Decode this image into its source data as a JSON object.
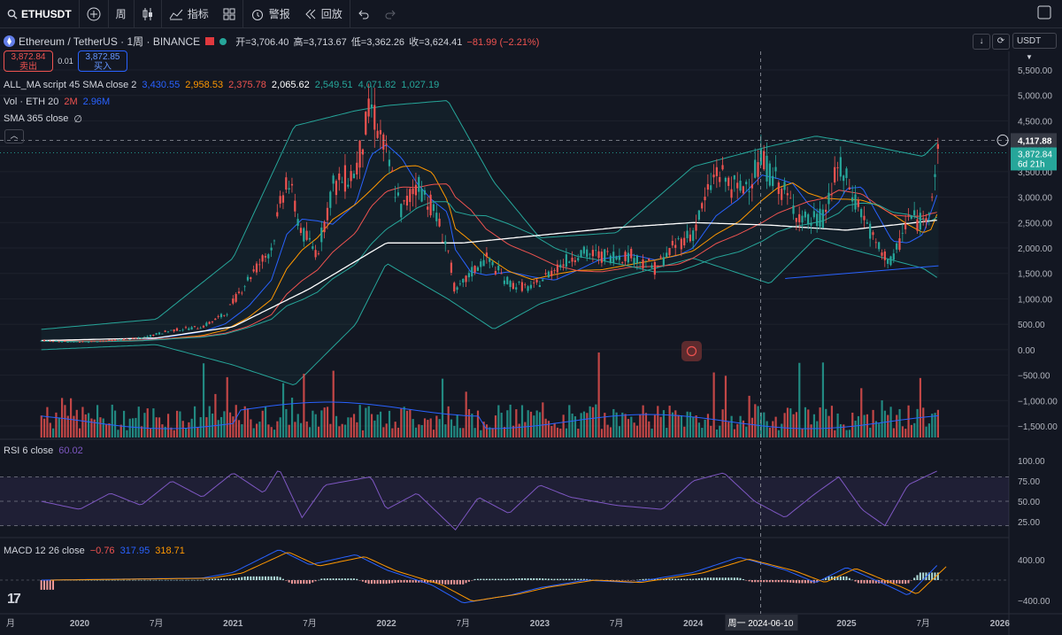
{
  "toolbar": {
    "symbol": "ETHUSDT",
    "interval": "周",
    "indicators_label": "指标",
    "alert_label": "警报",
    "replay_label": "回放"
  },
  "header": {
    "title": "Ethereum / TetherUS · 1周 · BINANCE",
    "open": "开=3,706.40",
    "high": "高=3,713.67",
    "low": "低=3,362.26",
    "close": "收=3,624.41",
    "change": "−81.99 (−2.21%)",
    "sell_price": "3,872.84",
    "sell_label": "卖出",
    "spread": "0.01",
    "buy_price": "3,872.85",
    "buy_label": "买入",
    "currency": "USDT"
  },
  "legend": {
    "ma_name": "ALL_MA script 45 SMA close 2",
    "ma_values": [
      "3,430.55",
      "2,958.53",
      "2,375.78",
      "2,065.62",
      "2,549.51",
      "4,071.82",
      "1,027.19"
    ],
    "ma_colors": [
      "#2962ff",
      "#ff9800",
      "#ef5350",
      "#ffffff",
      "#26a69a",
      "#26a69a",
      "#26a69a"
    ],
    "vol_name": "Vol · ETH 20",
    "vol_v1": "2M",
    "vol_v2": "2.96M",
    "sma_name": "SMA 365 close",
    "sma_val": "∅",
    "rsi_name": "RSI 6 close",
    "rsi_val": "60.02",
    "macd_name": "MACD 12 26 close",
    "macd_values": [
      "−0.76",
      "317.95",
      "318.71"
    ]
  },
  "colors": {
    "bg": "#131722",
    "up": "#26a69a",
    "down": "#ef5350",
    "grid": "#1e222d"
  },
  "chart_data": {
    "type": "candlestick",
    "price_axis": {
      "ticks": [
        "5,500.00",
        "5,000.00",
        "4,500.00",
        "4,000.00",
        "3,500.00",
        "3,000.00",
        "2,500.00",
        "2,000.00",
        "1,500.00",
        "1,000.00",
        "500.00",
        "0.00",
        "−500.00",
        "−1,000.00",
        "−1,500.00"
      ],
      "min": -1500,
      "max": 5500
    },
    "price_labels": {
      "crosshair": "4,117.88",
      "last": "3,872.84",
      "countdown": "6d 21h"
    },
    "x_ticks": [
      "月",
      "2020",
      "7月",
      "2021",
      "7月",
      "2022",
      "7月",
      "2023",
      "7月",
      "2024",
      "周一 2024-06-10",
      "2025",
      "7月",
      "2026"
    ],
    "rsi_ticks": [
      "100.00",
      "75.00",
      "50.00",
      "25.00"
    ],
    "macd_ticks": [
      "400.00",
      "−400.00"
    ],
    "price_path": [
      [
        2019.75,
        180
      ],
      [
        2020.0,
        150
      ],
      [
        2020.2,
        180
      ],
      [
        2020.4,
        230
      ],
      [
        2020.6,
        380
      ],
      [
        2020.8,
        450
      ],
      [
        2020.95,
        700
      ],
      [
        2021.1,
        1400
      ],
      [
        2021.25,
        2000
      ],
      [
        2021.35,
        3400
      ],
      [
        2021.45,
        2300
      ],
      [
        2021.55,
        1900
      ],
      [
        2021.65,
        3200
      ],
      [
        2021.8,
        3500
      ],
      [
        2021.9,
        4800
      ],
      [
        2022.0,
        3800
      ],
      [
        2022.1,
        2700
      ],
      [
        2022.2,
        3300
      ],
      [
        2022.3,
        2800
      ],
      [
        2022.4,
        2000
      ],
      [
        2022.45,
        1100
      ],
      [
        2022.55,
        1500
      ],
      [
        2022.65,
        1800
      ],
      [
        2022.8,
        1300
      ],
      [
        2022.95,
        1200
      ],
      [
        2023.1,
        1600
      ],
      [
        2023.25,
        1900
      ],
      [
        2023.4,
        1850
      ],
      [
        2023.6,
        1850
      ],
      [
        2023.75,
        1600
      ],
      [
        2023.9,
        2100
      ],
      [
        2024.0,
        2300
      ],
      [
        2024.15,
        3500
      ],
      [
        2024.3,
        3100
      ],
      [
        2024.45,
        3700
      ],
      [
        2024.55,
        3300
      ],
      [
        2024.65,
        2800
      ],
      [
        2024.75,
        2500
      ],
      [
        2024.85,
        2600
      ],
      [
        2024.95,
        3600
      ],
      [
        2025.0,
        3300
      ],
      [
        2025.1,
        2700
      ],
      [
        2025.2,
        2000
      ],
      [
        2025.3,
        1700
      ],
      [
        2025.4,
        2600
      ],
      [
        2025.5,
        2500
      ],
      [
        2025.55,
        3000
      ],
      [
        2025.6,
        3873
      ]
    ],
    "sma365_path": [
      [
        2019.75,
        180
      ],
      [
        2020.5,
        230
      ],
      [
        2021.0,
        450
      ],
      [
        2021.5,
        1200
      ],
      [
        2022.0,
        2100
      ],
      [
        2022.5,
        2100
      ],
      [
        2023.0,
        2250
      ],
      [
        2023.5,
        2400
      ],
      [
        2024.0,
        2500
      ],
      [
        2024.5,
        2450
      ],
      [
        2025.0,
        2350
      ],
      [
        2025.6,
        2550
      ]
    ],
    "bb_upper": [
      [
        2019.75,
        400
      ],
      [
        2020.5,
        600
      ],
      [
        2021.0,
        1800
      ],
      [
        2021.4,
        4400
      ],
      [
        2021.8,
        4700
      ],
      [
        2022.0,
        4800
      ],
      [
        2022.4,
        4900
      ],
      [
        2022.7,
        3300
      ],
      [
        2023.0,
        2200
      ],
      [
        2023.5,
        2300
      ],
      [
        2024.0,
        3600
      ],
      [
        2024.5,
        4000
      ],
      [
        2024.8,
        4200
      ],
      [
        2025.0,
        4100
      ],
      [
        2025.5,
        3800
      ],
      [
        2025.6,
        4100
      ]
    ],
    "bb_lower": [
      [
        2019.75,
        0
      ],
      [
        2020.5,
        100
      ],
      [
        2021.0,
        -300
      ],
      [
        2021.4,
        -700
      ],
      [
        2021.8,
        500
      ],
      [
        2022.0,
        1700
      ],
      [
        2022.4,
        1000
      ],
      [
        2022.7,
        400
      ],
      [
        2023.0,
        900
      ],
      [
        2023.5,
        1400
      ],
      [
        2024.0,
        1800
      ],
      [
        2024.5,
        1300
      ],
      [
        2024.8,
        2200
      ],
      [
        2025.0,
        2000
      ],
      [
        2025.5,
        1600
      ],
      [
        2025.6,
        1400
      ]
    ],
    "rsi_path": [
      [
        2019.75,
        50
      ],
      [
        2020.0,
        40
      ],
      [
        2020.2,
        60
      ],
      [
        2020.4,
        45
      ],
      [
        2020.6,
        75
      ],
      [
        2020.8,
        55
      ],
      [
        2021.0,
        85
      ],
      [
        2021.2,
        60
      ],
      [
        2021.3,
        90
      ],
      [
        2021.45,
        30
      ],
      [
        2021.6,
        70
      ],
      [
        2021.9,
        80
      ],
      [
        2022.0,
        40
      ],
      [
        2022.2,
        60
      ],
      [
        2022.45,
        15
      ],
      [
        2022.6,
        55
      ],
      [
        2022.8,
        35
      ],
      [
        2023.0,
        70
      ],
      [
        2023.2,
        55
      ],
      [
        2023.5,
        45
      ],
      [
        2023.8,
        40
      ],
      [
        2024.0,
        75
      ],
      [
        2024.2,
        85
      ],
      [
        2024.4,
        50
      ],
      [
        2024.6,
        30
      ],
      [
        2024.8,
        60
      ],
      [
        2024.95,
        80
      ],
      [
        2025.1,
        40
      ],
      [
        2025.25,
        20
      ],
      [
        2025.4,
        70
      ],
      [
        2025.6,
        88
      ]
    ],
    "macd_path": [
      [
        2019.75,
        0
      ],
      [
        2020.8,
        40
      ],
      [
        2021.0,
        150
      ],
      [
        2021.3,
        600
      ],
      [
        2021.5,
        300
      ],
      [
        2021.8,
        500
      ],
      [
        2022.0,
        200
      ],
      [
        2022.3,
        -100
      ],
      [
        2022.5,
        -450
      ],
      [
        2022.8,
        -300
      ],
      [
        2023.0,
        -150
      ],
      [
        2023.3,
        0
      ],
      [
        2023.6,
        -50
      ],
      [
        2024.0,
        150
      ],
      [
        2024.3,
        450
      ],
      [
        2024.6,
        200
      ],
      [
        2024.8,
        -50
      ],
      [
        2025.0,
        250
      ],
      [
        2025.3,
        -150
      ],
      [
        2025.4,
        -300
      ],
      [
        2025.6,
        318
      ]
    ]
  }
}
